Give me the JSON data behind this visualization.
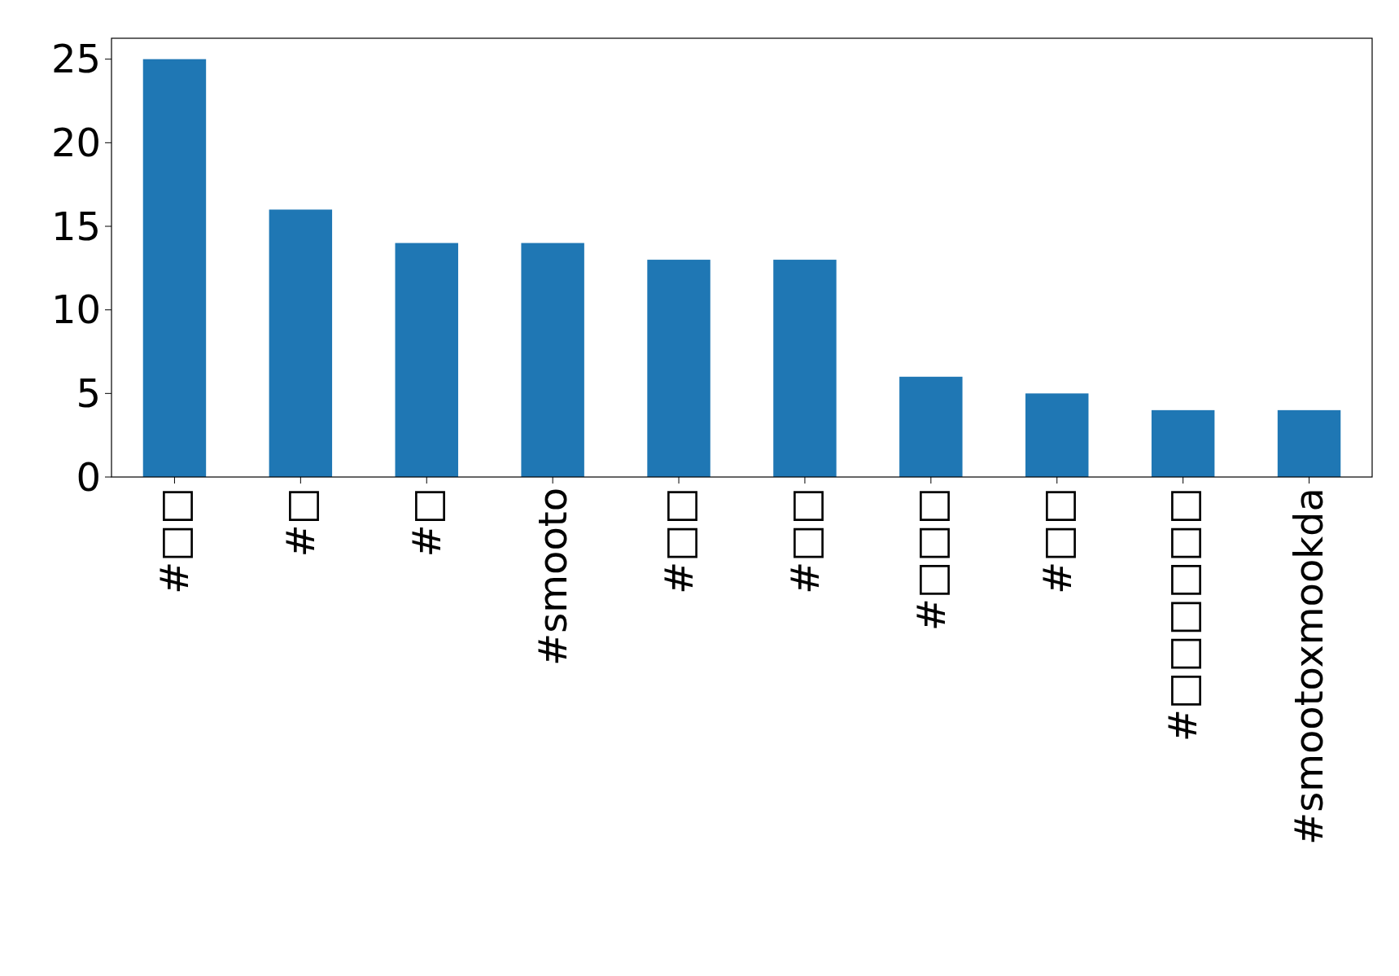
{
  "chart_data": {
    "type": "bar",
    "categories": [
      "#□□",
      "#□",
      "#□",
      "#smooto",
      "#□□",
      "#□□",
      "#□□□",
      "#□□",
      "#□□□□□□",
      "#smootoxmookda"
    ],
    "values": [
      25,
      16,
      14,
      14,
      13,
      13,
      6,
      5,
      4,
      4
    ],
    "color": "#1f77b4",
    "ylim": [
      0,
      26.25
    ],
    "yticks": [
      0,
      5,
      10,
      15,
      20,
      25
    ],
    "grid": false
  }
}
